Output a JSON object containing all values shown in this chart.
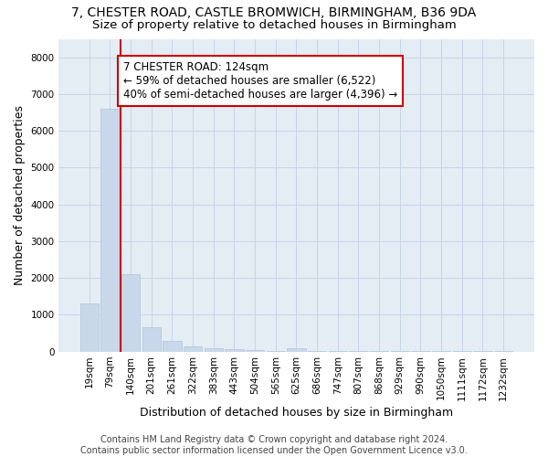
{
  "title": "7, CHESTER ROAD, CASTLE BROMWICH, BIRMINGHAM, B36 9DA",
  "subtitle": "Size of property relative to detached houses in Birmingham",
  "xlabel": "Distribution of detached houses by size in Birmingham",
  "ylabel": "Number of detached properties",
  "footer_line1": "Contains HM Land Registry data © Crown copyright and database right 2024.",
  "footer_line2": "Contains public sector information licensed under the Open Government Licence v3.0.",
  "categories": [
    "19sqm",
    "79sqm",
    "140sqm",
    "201sqm",
    "261sqm",
    "322sqm",
    "383sqm",
    "443sqm",
    "504sqm",
    "565sqm",
    "625sqm",
    "686sqm",
    "747sqm",
    "807sqm",
    "868sqm",
    "929sqm",
    "990sqm",
    "1050sqm",
    "1111sqm",
    "1172sqm",
    "1232sqm"
  ],
  "values": [
    1300,
    6600,
    2100,
    650,
    300,
    130,
    90,
    70,
    50,
    5,
    100,
    5,
    5,
    5,
    5,
    5,
    5,
    5,
    5,
    5,
    5
  ],
  "bar_color": "#c8d8ea",
  "bar_edge_color": "#b0c4d8",
  "property_line_x": 1.5,
  "property_line_color": "#cc0000",
  "annotation_line1": "7 CHESTER ROAD: 124sqm",
  "annotation_line2": "← 59% of detached houses are smaller (6,522)",
  "annotation_line3": "40% of semi-detached houses are larger (4,396) →",
  "annotation_box_color": "#cc0000",
  "annotation_bg_color": "#ffffff",
  "ylim": [
    0,
    8500
  ],
  "yticks": [
    0,
    1000,
    2000,
    3000,
    4000,
    5000,
    6000,
    7000,
    8000
  ],
  "grid_color": "#c8d4e8",
  "background_color": "#e4ecf4",
  "title_fontsize": 10,
  "subtitle_fontsize": 9.5,
  "axis_label_fontsize": 9,
  "tick_fontsize": 7.5,
  "annotation_fontsize": 8.5,
  "footer_fontsize": 7
}
